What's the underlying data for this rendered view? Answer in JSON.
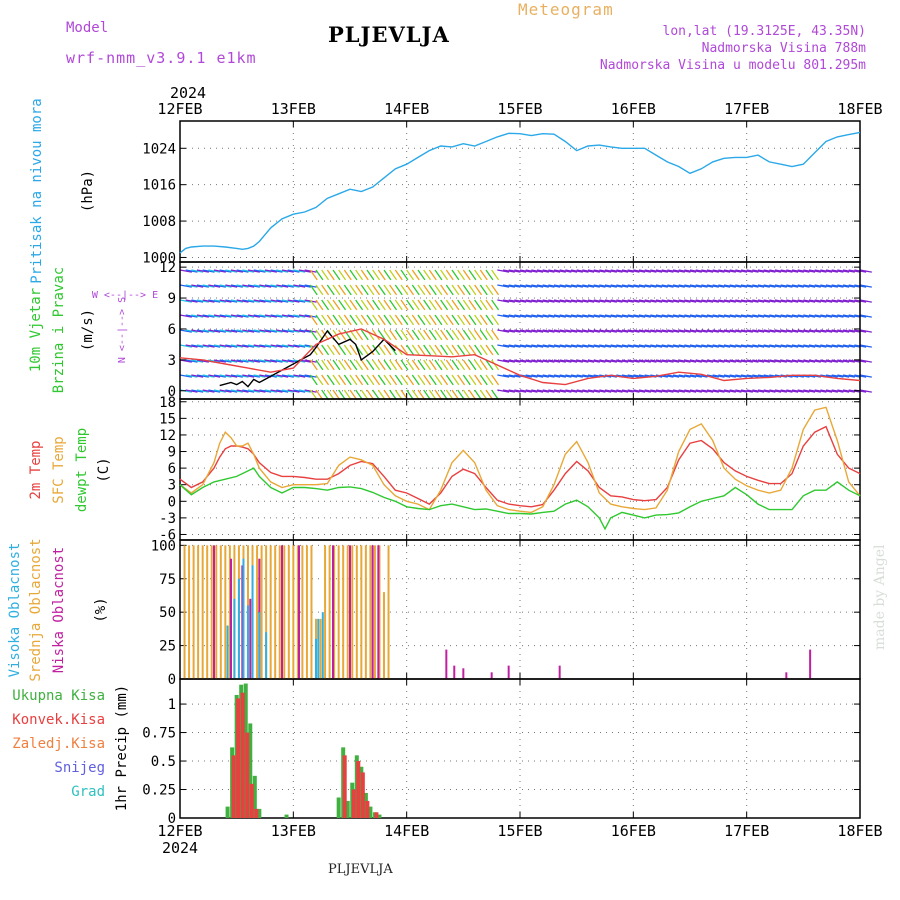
{
  "header": {
    "model_label": "Model",
    "model_name": "wrf-nmm_v3.9.1  e1km",
    "station": "PLJEVLJA",
    "product": "Meteogram",
    "coords": "lon,lat (19.3125E, 43.35N)",
    "elevation": "Nadmorska Visina 788m",
    "model_elevation": "Nadmorska Visina u modelu 801.295m"
  },
  "footer": {
    "station": "PLJEVLJA",
    "credit": "made by Angel"
  },
  "colors": {
    "pressure": "#2aa8e8",
    "temp2m": "#e84040",
    "sfc": "#e8a838",
    "dew": "#30c830",
    "high_cloud": "#30b0e0",
    "mid_cloud": "#e8a838",
    "low_cloud": "#c020a0",
    "total_precip": "#40b040",
    "conv_precip": "#e84040",
    "frozen": "#f08040",
    "snow": "#6060e0",
    "graupel": "#30c0c0",
    "purple": "#b048d8"
  },
  "chart_data": [
    {
      "type": "line",
      "panel": "pressure",
      "ylabel": "Pritisak na nivou mora",
      "units": "(hPa)",
      "ylim": [
        999,
        1030
      ],
      "yticks": [
        1000,
        1008,
        1016,
        1024
      ],
      "x_top": [
        "12FEB",
        "13FEB",
        "14FEB",
        "15FEB",
        "16FEB",
        "17FEB",
        "18FEB"
      ],
      "x_top_year": "2024",
      "grid": true,
      "series": [
        {
          "color": "#2aa8e8",
          "x": [
            0,
            0.05,
            0.1,
            0.2,
            0.3,
            0.4,
            0.5,
            0.55,
            0.6,
            0.65,
            0.7,
            0.75,
            0.8,
            0.9,
            1.0,
            1.1,
            1.2,
            1.3,
            1.4,
            1.5,
            1.6,
            1.7,
            1.8,
            1.9,
            2.0,
            2.1,
            2.2,
            2.3,
            2.4,
            2.5,
            2.6,
            2.7,
            2.8,
            2.9,
            3.0,
            3.1,
            3.2,
            3.3,
            3.4,
            3.5,
            3.6,
            3.7,
            3.8,
            3.9,
            4.0,
            4.1,
            4.2,
            4.3,
            4.4,
            4.5,
            4.6,
            4.7,
            4.8,
            4.9,
            5.0,
            5.1,
            5.2,
            5.3,
            5.4,
            5.5,
            5.6,
            5.7,
            5.8,
            5.9,
            6.0
          ],
          "y": [
            1001,
            1002,
            1002.3,
            1002.5,
            1002.5,
            1002.3,
            1002,
            1001.8,
            1002,
            1002.5,
            1003.5,
            1005,
            1006.5,
            1008.5,
            1009.5,
            1010,
            1011,
            1013,
            1014,
            1015,
            1014.5,
            1015.5,
            1017.5,
            1019.5,
            1020.5,
            1022,
            1023.5,
            1024.5,
            1024.3,
            1025,
            1024.5,
            1025.5,
            1026.5,
            1027.3,
            1027.2,
            1026.8,
            1027.2,
            1027.1,
            1025.5,
            1023.5,
            1024.5,
            1024.7,
            1024.3,
            1024,
            1024,
            1024,
            1022.5,
            1021,
            1020,
            1018.5,
            1019.5,
            1021,
            1021.8,
            1022,
            1022,
            1022.5,
            1021,
            1020.5,
            1020,
            1020.5,
            1023,
            1025.5,
            1026.5,
            1027,
            1027.5
          ]
        }
      ]
    },
    {
      "type": "line",
      "panel": "wind",
      "ylabel": "10m Vjetar Brzina i Pravac",
      "units": "(m/s)",
      "ylim": [
        -0.8,
        12.5
      ],
      "yticks": [
        0,
        3,
        6,
        9,
        12
      ],
      "compass": "W <--|--> E",
      "compass_vertical": "N <--|--> S",
      "grid": true,
      "series": [
        {
          "name": "speed",
          "color": "#000000",
          "x": [
            0.35,
            0.45,
            0.5,
            0.55,
            0.6,
            0.65,
            0.7,
            1.15,
            1.2,
            1.3,
            1.4,
            1.5,
            1.55,
            1.6,
            1.7,
            1.8,
            1.9
          ],
          "y": [
            0.5,
            0.8,
            0.6,
            0.9,
            0.4,
            1.1,
            0.8,
            3.5,
            4.2,
            5.8,
            4.5,
            5.0,
            4.5,
            3.0,
            3.8,
            5.0,
            3.9
          ]
        },
        {
          "name": "gust",
          "color": "#e84040",
          "x": [
            0,
            0.2,
            0.4,
            0.6,
            0.8,
            1.0,
            1.2,
            1.4,
            1.6,
            1.8,
            2.0,
            2.2,
            2.4,
            2.6,
            2.8,
            3.0,
            3.2,
            3.4,
            3.6,
            3.8,
            4.0,
            4.2,
            4.4,
            4.6,
            4.8,
            5.0,
            5.2,
            5.4,
            5.6,
            5.8,
            6.0
          ],
          "y": [
            3.2,
            3.0,
            2.6,
            2.2,
            1.8,
            2.2,
            4.5,
            5.5,
            6.0,
            5.0,
            3.5,
            3.4,
            3.3,
            3.5,
            2.5,
            1.5,
            0.8,
            0.6,
            1.2,
            1.5,
            1.2,
            1.4,
            1.8,
            1.6,
            1.0,
            1.2,
            1.3,
            1.5,
            1.5,
            1.2,
            1.0
          ]
        }
      ]
    },
    {
      "type": "line",
      "panel": "temperature",
      "ylabels": [
        "2m Temp",
        "SFC Temp",
        "dewpt Temp"
      ],
      "units": "(C)",
      "ylim": [
        -7,
        18.5
      ],
      "yticks": [
        -6,
        -3,
        0,
        3,
        6,
        9,
        12,
        15,
        18
      ],
      "grid": true,
      "series": [
        {
          "name": "2m Temp",
          "color": "#e84040",
          "x": [
            0,
            0.1,
            0.2,
            0.3,
            0.35,
            0.4,
            0.45,
            0.5,
            0.55,
            0.6,
            0.65,
            0.7,
            0.8,
            0.9,
            1.0,
            1.1,
            1.2,
            1.3,
            1.4,
            1.5,
            1.6,
            1.7,
            1.8,
            1.9,
            2.0,
            2.1,
            2.2,
            2.3,
            2.4,
            2.5,
            2.6,
            2.7,
            2.8,
            2.9,
            3.0,
            3.1,
            3.2,
            3.3,
            3.4,
            3.5,
            3.6,
            3.7,
            3.8,
            3.9,
            4.0,
            4.1,
            4.2,
            4.3,
            4.4,
            4.5,
            4.6,
            4.7,
            4.8,
            4.9,
            5.0,
            5.1,
            5.2,
            5.3,
            5.4,
            5.5,
            5.6,
            5.7,
            5.8,
            5.9,
            6.0
          ],
          "y": [
            4,
            2.5,
            3.5,
            6,
            8,
            9.5,
            10,
            10,
            9.8,
            9.5,
            8.5,
            7,
            5.2,
            4.5,
            4.5,
            4.3,
            4,
            4,
            5,
            6.5,
            7.2,
            6.8,
            4.5,
            2,
            1.5,
            0.5,
            -0.5,
            1.5,
            4.5,
            5.8,
            5,
            2.5,
            0.2,
            -0.5,
            -0.8,
            -1,
            -0.6,
            2,
            5,
            7.2,
            5.5,
            2.5,
            1,
            0.8,
            0.3,
            0.1,
            0.3,
            2.5,
            7.5,
            10.5,
            11,
            9.5,
            7,
            5.5,
            4.5,
            3.8,
            3.2,
            3.2,
            5,
            10,
            12.5,
            13.5,
            8.5,
            6,
            5
          ]
        },
        {
          "name": "SFC Temp",
          "color": "#e8a838",
          "x": [
            0,
            0.1,
            0.2,
            0.3,
            0.35,
            0.4,
            0.45,
            0.5,
            0.55,
            0.6,
            0.65,
            0.7,
            0.8,
            0.9,
            1.0,
            1.1,
            1.2,
            1.3,
            1.4,
            1.5,
            1.6,
            1.7,
            1.8,
            1.9,
            2.0,
            2.1,
            2.2,
            2.3,
            2.4,
            2.5,
            2.6,
            2.7,
            2.8,
            2.9,
            3.0,
            3.1,
            3.2,
            3.3,
            3.4,
            3.5,
            3.6,
            3.7,
            3.8,
            3.9,
            4.0,
            4.1,
            4.2,
            4.3,
            4.4,
            4.5,
            4.6,
            4.7,
            4.8,
            4.9,
            5.0,
            5.1,
            5.2,
            5.3,
            5.4,
            5.5,
            5.6,
            5.7,
            5.8,
            5.9,
            6.0
          ],
          "y": [
            3,
            1.5,
            3,
            7,
            10.5,
            12.5,
            11.5,
            10,
            10,
            10.5,
            8.5,
            6,
            3.5,
            2.5,
            3,
            3,
            3,
            3.2,
            6.5,
            8,
            7.5,
            6.5,
            3,
            1,
            0,
            -0.5,
            -1.5,
            2,
            7,
            9.2,
            7,
            2,
            -0.8,
            -1.5,
            -1.8,
            -2,
            -1,
            3,
            8.5,
            10.8,
            7,
            1.5,
            -0.5,
            -1,
            -1.3,
            -1.5,
            -1.2,
            2,
            9,
            13,
            14,
            11,
            6,
            4,
            2.8,
            2,
            1.5,
            2,
            6,
            13,
            16.5,
            17,
            11,
            3.5,
            1
          ]
        },
        {
          "name": "dewpt Temp",
          "color": "#30c830",
          "x": [
            0,
            0.1,
            0.2,
            0.3,
            0.4,
            0.5,
            0.6,
            0.65,
            0.7,
            0.8,
            0.9,
            1.0,
            1.1,
            1.2,
            1.3,
            1.4,
            1.5,
            1.6,
            1.7,
            1.8,
            1.9,
            2.0,
            2.1,
            2.2,
            2.3,
            2.4,
            2.5,
            2.6,
            2.7,
            2.8,
            2.9,
            3.0,
            3.1,
            3.2,
            3.3,
            3.4,
            3.5,
            3.6,
            3.7,
            3.75,
            3.8,
            3.9,
            4.0,
            4.1,
            4.2,
            4.3,
            4.4,
            4.5,
            4.6,
            4.7,
            4.8,
            4.9,
            5.0,
            5.1,
            5.2,
            5.3,
            5.4,
            5.5,
            5.6,
            5.7,
            5.8,
            5.9,
            6.0
          ],
          "y": [
            3,
            1.2,
            2.5,
            3.5,
            4,
            4.5,
            5.5,
            6,
            4.5,
            2.5,
            1.5,
            2.5,
            2.5,
            2.3,
            2,
            2.5,
            2.6,
            2.3,
            1.6,
            0.7,
            0,
            -1,
            -1.3,
            -1.5,
            -0.8,
            -0.5,
            -1,
            -1.5,
            -1.4,
            -1.8,
            -2.2,
            -2.2,
            -2.3,
            -2,
            -1.8,
            -0.5,
            0.2,
            -1,
            -3,
            -5,
            -3,
            -2,
            -2.5,
            -3,
            -2.5,
            -2.4,
            -2.1,
            -1,
            0,
            0.5,
            1,
            2.5,
            1.2,
            -0.5,
            -1.5,
            -1.5,
            -1.5,
            1,
            2,
            2,
            3.5,
            2,
            1
          ]
        }
      ]
    },
    {
      "type": "bar",
      "panel": "cloud",
      "ylabels": [
        "Visoka Oblacnost",
        "Srednja Oblacnost",
        "Niska Oblacnost"
      ],
      "units": "(%)",
      "ylim": [
        0,
        104
      ],
      "yticks": [
        0,
        25,
        50,
        75,
        100
      ],
      "grid": true,
      "series": [
        {
          "name": "Srednja Oblacnost",
          "color": "#e8a838",
          "x": [
            0.04,
            0.08,
            0.12,
            0.16,
            0.2,
            0.24,
            0.28,
            0.32,
            0.36,
            0.4,
            0.44,
            0.48,
            0.52,
            0.56,
            0.6,
            0.64,
            0.68,
            0.72,
            0.76,
            0.8,
            0.84,
            0.88,
            0.92,
            0.96,
            1.0,
            1.04,
            1.08,
            1.12,
            1.16,
            1.2,
            1.24,
            1.28,
            1.32,
            1.36,
            1.4,
            1.44,
            1.48,
            1.52,
            1.56,
            1.6,
            1.64,
            1.68,
            1.72,
            1.76,
            1.8,
            1.84
          ],
          "y": [
            100,
            100,
            100,
            100,
            100,
            100,
            100,
            100,
            100,
            100,
            100,
            100,
            100,
            100,
            100,
            100,
            100,
            100,
            100,
            100,
            100,
            100,
            100,
            100,
            100,
            100,
            100,
            100,
            100,
            45,
            45,
            100,
            100,
            100,
            100,
            100,
            100,
            100,
            100,
            100,
            100,
            100,
            100,
            100,
            65,
            100
          ]
        },
        {
          "name": "Niska Oblacnost",
          "color": "#c020a0",
          "x": [
            0.3,
            0.45,
            0.55,
            0.62,
            0.7,
            0.9,
            1.05,
            1.35,
            1.5,
            1.7,
            1.75,
            2.35,
            2.42,
            2.5,
            2.75,
            2.9,
            3.35,
            5.35,
            5.56
          ],
          "y": [
            100,
            90,
            85,
            60,
            90,
            100,
            100,
            100,
            100,
            100,
            100,
            22,
            10,
            8,
            5,
            10,
            10,
            5,
            22
          ]
        },
        {
          "name": "Visoka Oblacnost",
          "color": "#30b0e0",
          "x": [
            0.42,
            0.48,
            0.52,
            0.56,
            0.6,
            0.64,
            0.7,
            0.76,
            1.2,
            1.22,
            1.26
          ],
          "y": [
            40,
            60,
            75,
            90,
            55,
            85,
            50,
            35,
            30,
            45,
            50
          ]
        }
      ]
    },
    {
      "type": "bar",
      "panel": "precip",
      "legend": [
        "Ukupna Kisa",
        "Konvek.Kisa",
        "Zaledj.Kisa",
        "Snijeg",
        "Grad"
      ],
      "ylabel": "1hr Precip (mm)",
      "ylim": [
        0,
        1.22
      ],
      "yticks": [
        0,
        0.25,
        0.5,
        0.75,
        1
      ],
      "x_bottom": [
        "12FEB",
        "13FEB",
        "14FEB",
        "15FEB",
        "16FEB",
        "17FEB",
        "18FEB"
      ],
      "x_bottom_year": "2024",
      "grid": true,
      "series": [
        {
          "name": "Ukupna Kisa",
          "color": "#40b040",
          "x": [
            0.42,
            0.46,
            0.5,
            0.54,
            0.58,
            0.62,
            0.66,
            0.7,
            0.94,
            1.4,
            1.44,
            1.48,
            1.52,
            1.56,
            1.6,
            1.64,
            1.68,
            1.72,
            1.76
          ],
          "y": [
            0.1,
            0.62,
            1.08,
            1.17,
            1.18,
            0.83,
            0.37,
            0.08,
            0.03,
            0.18,
            0.62,
            0.15,
            0.31,
            0.55,
            0.45,
            0.22,
            0.1,
            0.05,
            0.03
          ]
        },
        {
          "name": "Konvek.Kisa",
          "color": "#e84040",
          "x": [
            0.46,
            0.5,
            0.54,
            0.58,
            0.62,
            0.66,
            1.44,
            1.52,
            1.56,
            1.6,
            1.64,
            1.72
          ],
          "y": [
            0.55,
            1.05,
            1.1,
            0.75,
            0.3,
            0.08,
            0.55,
            0.25,
            0.5,
            0.4,
            0.15,
            0.05
          ]
        }
      ]
    }
  ]
}
